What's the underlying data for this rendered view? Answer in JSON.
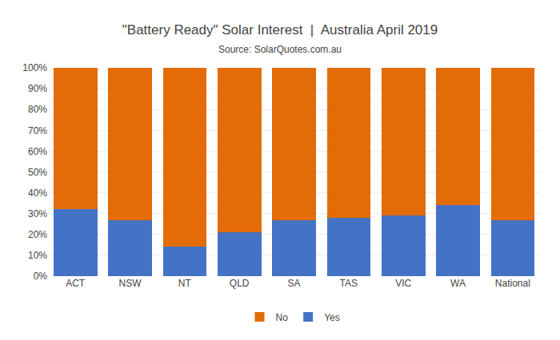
{
  "chart_data": {
    "type": "bar",
    "stacked": true,
    "title": "\"Battery Ready\" Solar Interest  |  Australia April 2019",
    "subtitle": "Source: SolarQuotes.com.au",
    "categories": [
      "ACT",
      "NSW",
      "NT",
      "QLD",
      "SA",
      "TAS",
      "VIC",
      "WA",
      "National"
    ],
    "series": [
      {
        "name": "Yes",
        "color": "#4472C4",
        "values": [
          32,
          27,
          14,
          21,
          27,
          28,
          29,
          34,
          27
        ]
      },
      {
        "name": "No",
        "color": "#E36C09",
        "values": [
          68,
          73,
          86,
          79,
          73,
          72,
          71,
          66,
          73
        ]
      }
    ],
    "ylim": [
      0,
      100
    ],
    "yticks": [
      {
        "value": 0,
        "label": "0%"
      },
      {
        "value": 10,
        "label": "10%"
      },
      {
        "value": 20,
        "label": "20%"
      },
      {
        "value": 30,
        "label": "30%"
      },
      {
        "value": 40,
        "label": "40%"
      },
      {
        "value": 50,
        "label": "50%"
      },
      {
        "value": 60,
        "label": "60%"
      },
      {
        "value": 70,
        "label": "70%"
      },
      {
        "value": 80,
        "label": "80%"
      },
      {
        "value": 90,
        "label": "90%"
      },
      {
        "value": 100,
        "label": "100%"
      }
    ],
    "grid": true,
    "legend": "bottom"
  }
}
